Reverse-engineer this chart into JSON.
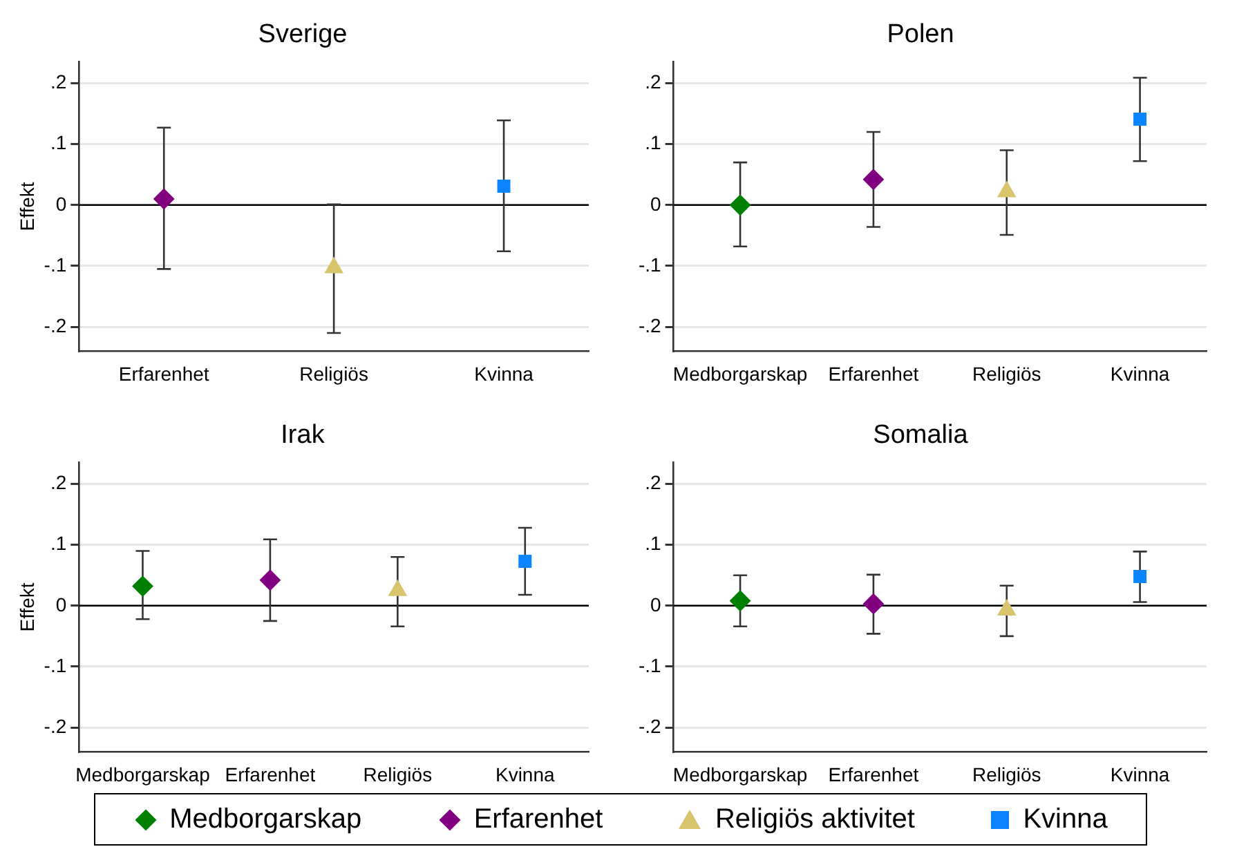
{
  "chart_data": [
    {
      "type": "scatter",
      "title": "Sverige",
      "ylabel": "Effekt",
      "categories": [
        "Erfarenhet",
        "Religiös",
        "Kvinna"
      ],
      "ylim": [
        -0.24,
        0.235
      ],
      "yticks": [
        {
          "value": -0.2,
          "label": "-.2"
        },
        {
          "value": -0.1,
          "label": "-.1"
        },
        {
          "value": 0,
          "label": "0"
        },
        {
          "value": 0.1,
          "label": ".1"
        },
        {
          "value": 0.2,
          "label": ".2"
        }
      ],
      "grid": "y",
      "ref_lines": [
        {
          "axis": "y",
          "value": 0,
          "color": "#000000"
        }
      ],
      "series": [
        {
          "color": "#800080",
          "marker": "diamond",
          "values": [
            0.01,
            null,
            null
          ],
          "errors": [
            [
              -0.105,
              0.127
            ],
            null,
            null
          ]
        },
        {
          "color": "#d8c46c",
          "marker": "triangle",
          "values": [
            null,
            -0.103,
            null
          ],
          "errors": [
            null,
            [
              -0.21,
              0.001
            ],
            null
          ]
        },
        {
          "color": "#0a84ff",
          "marker": "square",
          "values": [
            null,
            null,
            0.031
          ],
          "errors": [
            null,
            null,
            [
              -0.076,
              0.139
            ]
          ]
        }
      ]
    },
    {
      "type": "scatter",
      "title": "Polen",
      "categories": [
        "Medborgarskap",
        "Erfarenhet",
        "Religiös",
        "Kvinna"
      ],
      "ylim": [
        -0.24,
        0.235
      ],
      "yticks": [
        {
          "value": -0.2,
          "label": "-.2"
        },
        {
          "value": -0.1,
          "label": "-.1"
        },
        {
          "value": 0,
          "label": "0"
        },
        {
          "value": 0.1,
          "label": ".1"
        },
        {
          "value": 0.2,
          "label": ".2"
        }
      ],
      "grid": "y",
      "ref_lines": [
        {
          "axis": "y",
          "value": 0,
          "color": "#000000"
        }
      ],
      "series": [
        {
          "color": "#008000",
          "marker": "diamond",
          "values": [
            0.0,
            null,
            null,
            null
          ],
          "errors": [
            [
              -0.068,
              0.07
            ],
            null,
            null,
            null
          ]
        },
        {
          "color": "#800080",
          "marker": "diamond",
          "values": [
            null,
            0.042,
            null,
            null
          ],
          "errors": [
            null,
            [
              -0.036,
              0.12
            ],
            null,
            null
          ]
        },
        {
          "color": "#d8c46c",
          "marker": "triangle",
          "values": [
            null,
            null,
            0.022,
            null
          ],
          "errors": [
            null,
            null,
            [
              -0.049,
              0.09
            ],
            null
          ]
        },
        {
          "color": "#0a84ff",
          "marker": "square",
          "values": [
            null,
            null,
            null,
            0.141
          ],
          "errors": [
            null,
            null,
            null,
            [
              0.072,
              0.209
            ]
          ]
        }
      ]
    },
    {
      "type": "scatter",
      "title": "Irak",
      "ylabel": "Effekt",
      "categories": [
        "Medborgarskap",
        "Erfarenhet",
        "Religiös",
        "Kvinna"
      ],
      "ylim": [
        -0.24,
        0.235
      ],
      "yticks": [
        {
          "value": -0.2,
          "label": "-.2"
        },
        {
          "value": -0.1,
          "label": "-.1"
        },
        {
          "value": 0,
          "label": "0"
        },
        {
          "value": 0.1,
          "label": ".1"
        },
        {
          "value": 0.2,
          "label": ".2"
        }
      ],
      "grid": "y",
      "ref_lines": [
        {
          "axis": "y",
          "value": 0,
          "color": "#000000"
        }
      ],
      "series": [
        {
          "color": "#008000",
          "marker": "diamond",
          "values": [
            0.032,
            null,
            null,
            null
          ],
          "errors": [
            [
              -0.022,
              0.09
            ],
            null,
            null,
            null
          ]
        },
        {
          "color": "#800080",
          "marker": "diamond",
          "values": [
            null,
            0.042,
            null,
            null
          ],
          "errors": [
            null,
            [
              -0.025,
              0.109
            ],
            null,
            null
          ]
        },
        {
          "color": "#d8c46c",
          "marker": "triangle",
          "values": [
            null,
            null,
            0.025,
            null
          ],
          "errors": [
            null,
            null,
            [
              -0.034,
              0.08
            ],
            null
          ]
        },
        {
          "color": "#0a84ff",
          "marker": "square",
          "values": [
            null,
            null,
            null,
            0.073
          ],
          "errors": [
            null,
            null,
            null,
            [
              0.018,
              0.128
            ]
          ]
        }
      ]
    },
    {
      "type": "scatter",
      "title": "Somalia",
      "categories": [
        "Medborgarskap",
        "Erfarenhet",
        "Religiös",
        "Kvinna"
      ],
      "ylim": [
        -0.24,
        0.235
      ],
      "yticks": [
        {
          "value": -0.2,
          "label": "-.2"
        },
        {
          "value": -0.1,
          "label": "-.1"
        },
        {
          "value": 0,
          "label": "0"
        },
        {
          "value": 0.1,
          "label": ".1"
        },
        {
          "value": 0.2,
          "label": ".2"
        }
      ],
      "grid": "y",
      "ref_lines": [
        {
          "axis": "y",
          "value": 0,
          "color": "#000000"
        }
      ],
      "legend": "bottom",
      "series": [
        {
          "name": "Medborgarskap",
          "color": "#008000",
          "marker": "diamond",
          "values": [
            0.008,
            null,
            null,
            null
          ],
          "errors": [
            [
              -0.034,
              0.05
            ],
            null,
            null,
            null
          ]
        },
        {
          "name": "Erfarenhet",
          "color": "#800080",
          "marker": "diamond",
          "values": [
            null,
            0.003,
            null,
            null
          ],
          "errors": [
            null,
            [
              -0.046,
              0.051
            ],
            null,
            null
          ]
        },
        {
          "name": "Religiös aktivitet",
          "color": "#d8c46c",
          "marker": "triangle",
          "values": [
            null,
            null,
            -0.007,
            null
          ],
          "errors": [
            null,
            null,
            [
              -0.05,
              0.033
            ],
            null
          ]
        },
        {
          "name": "Kvinna",
          "color": "#0a84ff",
          "marker": "square",
          "values": [
            null,
            null,
            null,
            0.048
          ],
          "errors": [
            null,
            null,
            null,
            [
              0.006,
              0.089
            ]
          ]
        }
      ]
    }
  ]
}
